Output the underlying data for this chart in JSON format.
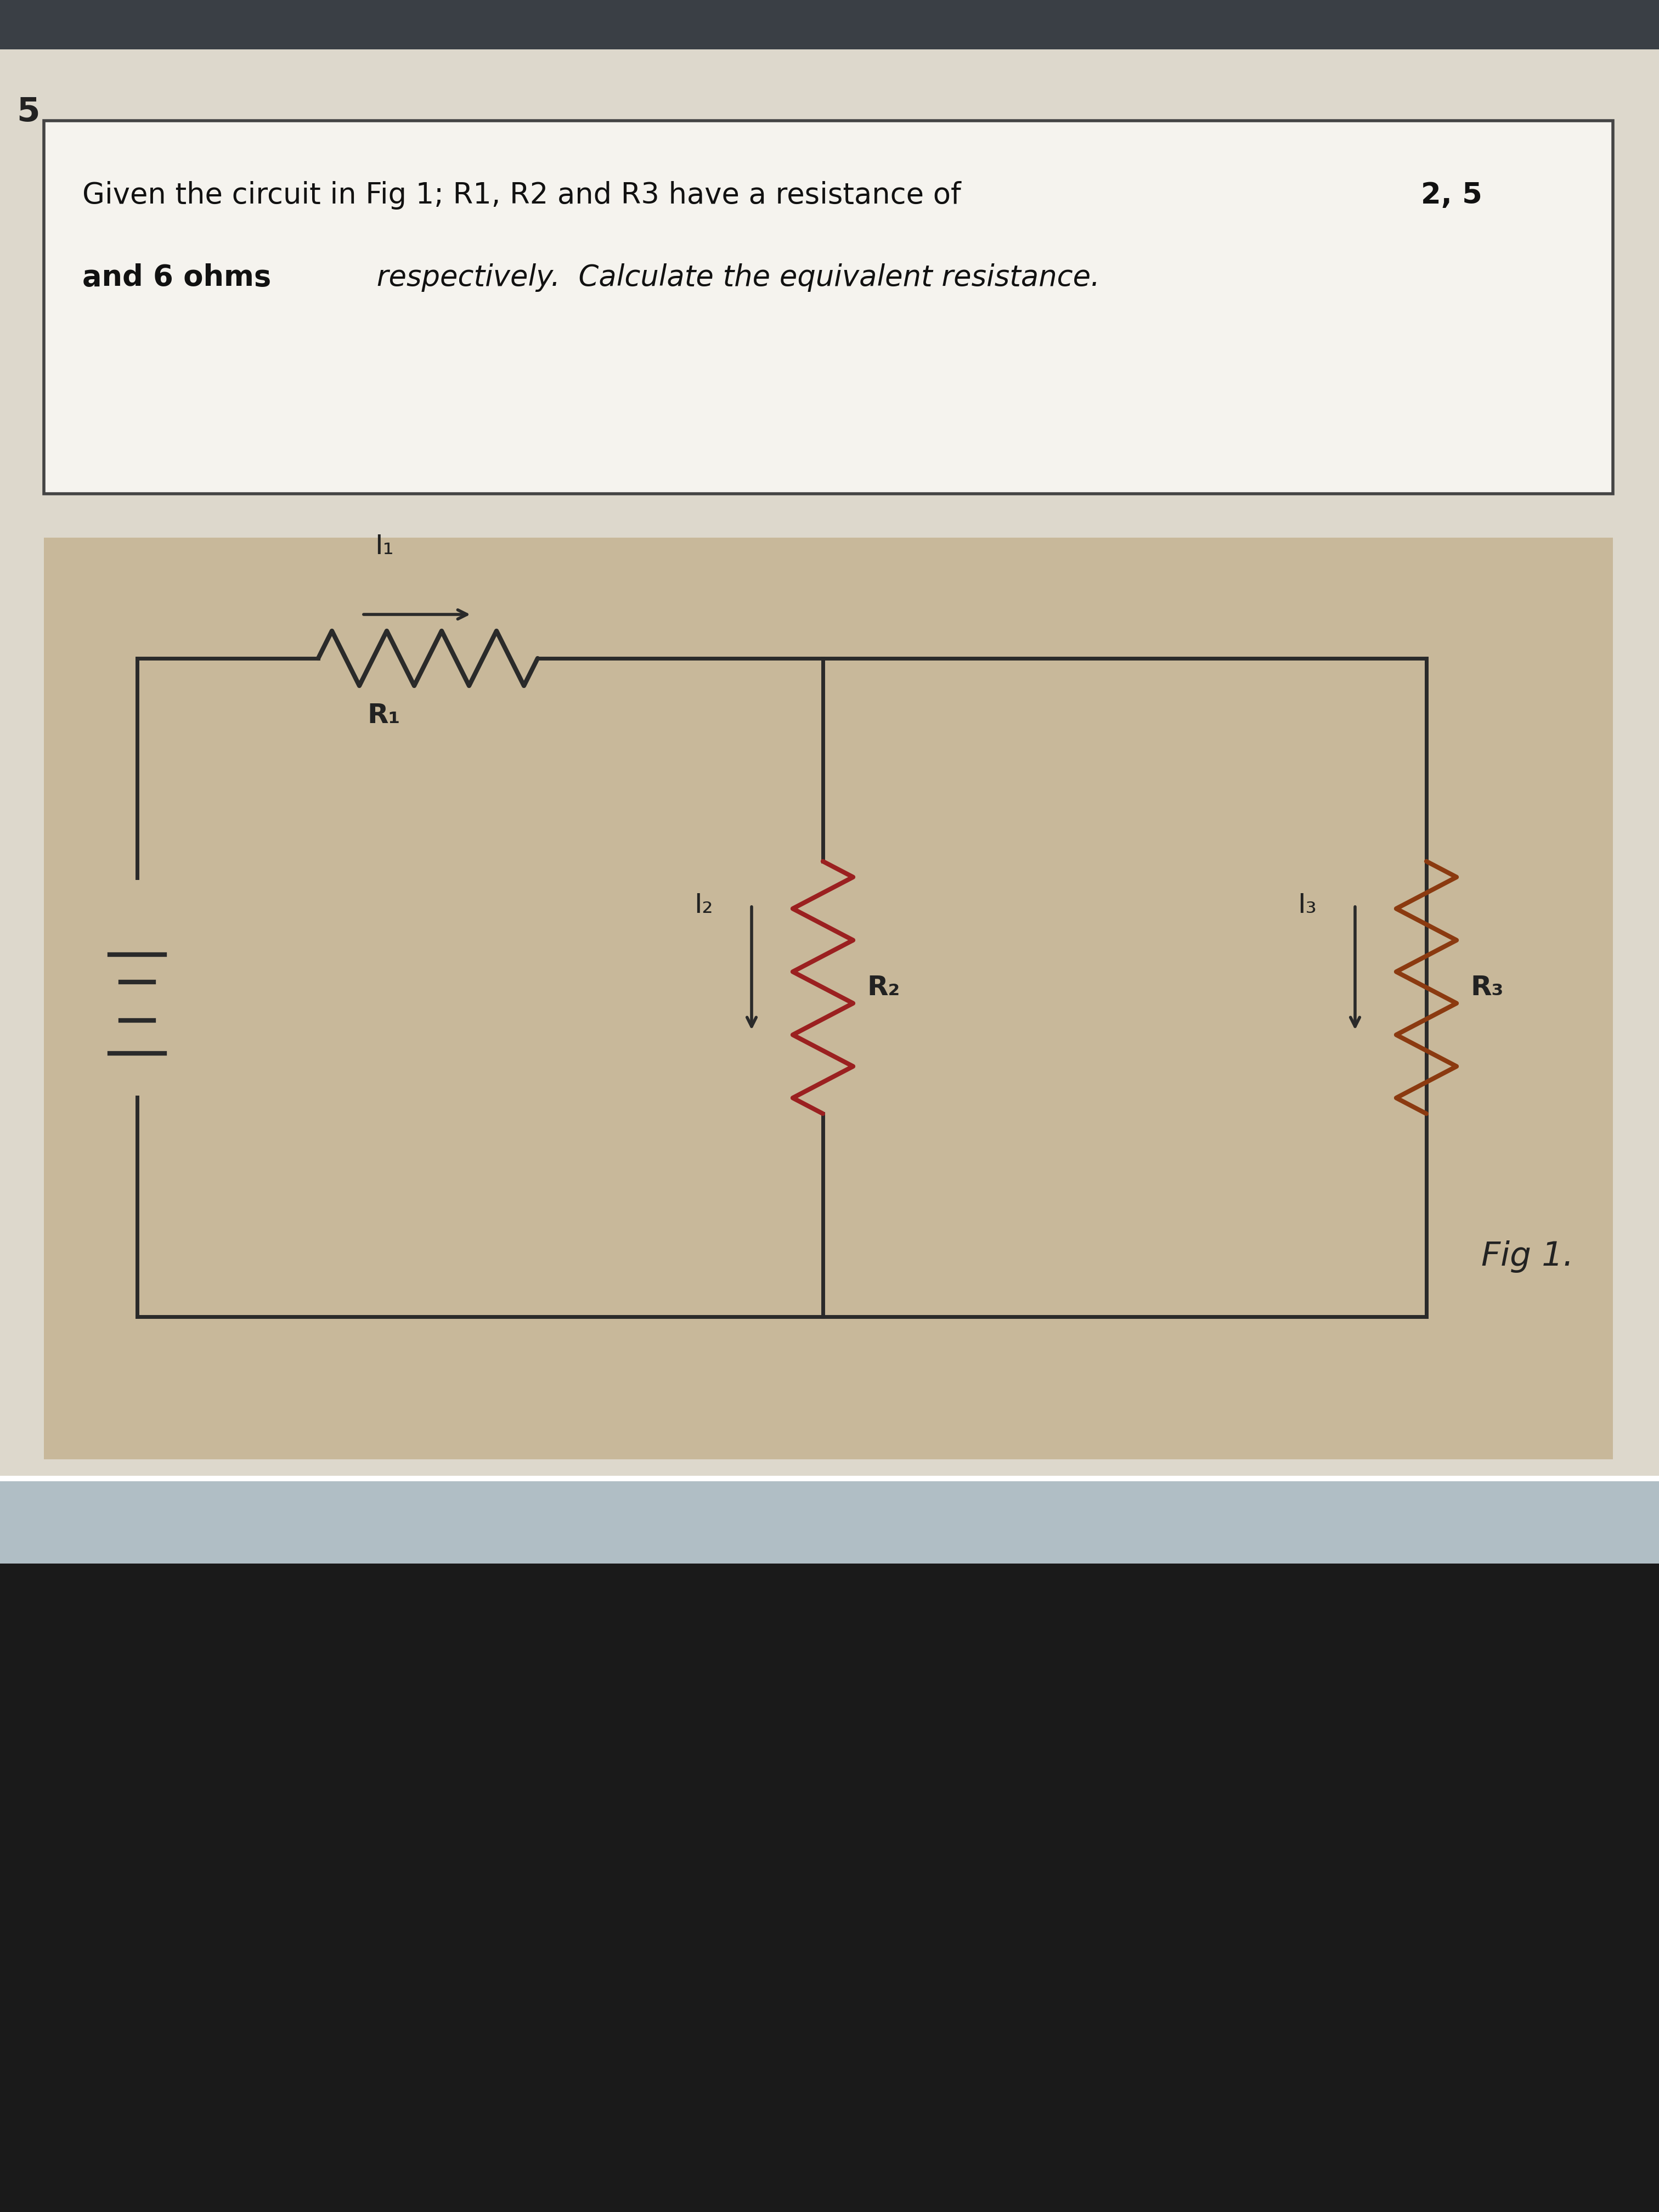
{
  "page_bg_top": "#3a3f45",
  "page_bg_bottom": "#1a1a1a",
  "paper_bg": "#ddd8cc",
  "circuit_bg": "#c8b89a",
  "text_box_bg": "#f5f3ee",
  "text_box_border": "#444444",
  "problem_number": "5",
  "line1_normal": "Given the circuit in Fig 1; R1, R2 and R3 have a resistance of ",
  "line1_bold": "2, 5",
  "line2_bold": "and 6 ohms",
  "line2_normal": " respectively.  Calculate the equivalent resistance.",
  "fig_label": "Fig 1.",
  "circuit_line_color": "#2a2a2a",
  "resistor_r1_color": "#2a2a2a",
  "resistor_r2_color": "#9B2020",
  "resistor_r3_color": "#8B3A10",
  "arrow_color": "#2a2a2a",
  "battery_color": "#2a2a2a",
  "label_color": "#222222",
  "label_fontsize": 36,
  "text_fontsize": 38,
  "number_fontsize": 44
}
